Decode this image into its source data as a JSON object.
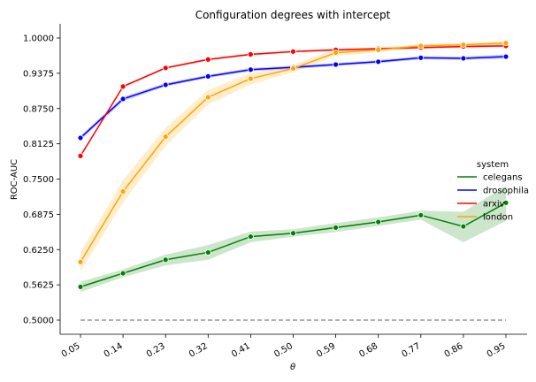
{
  "chart_data": {
    "type": "line",
    "title": "Configuration degrees with intercept",
    "xlabel": "θ",
    "ylabel": "ROC-AUC",
    "categories": [
      "0.05",
      "0.14",
      "0.23",
      "0.32",
      "0.41",
      "0.50",
      "0.59",
      "0.68",
      "0.77",
      "0.86",
      "0.95"
    ],
    "yticks": [
      "0.5000",
      "0.5625",
      "0.6250",
      "0.6875",
      "0.7500",
      "0.8125",
      "0.8750",
      "0.9375",
      "1.0000"
    ],
    "ylim": [
      0.48,
      1.015
    ],
    "legend_title": "system",
    "legend_position": "center-right",
    "grid": false,
    "series": [
      {
        "name": "celegans",
        "color": "#008000",
        "values": [
          0.559,
          0.583,
          0.607,
          0.62,
          0.648,
          0.654,
          0.664,
          0.674,
          0.686,
          0.666,
          0.708
        ],
        "ci_low": [
          0.55,
          0.576,
          0.597,
          0.607,
          0.638,
          0.648,
          0.656,
          0.667,
          0.678,
          0.638,
          0.676
        ],
        "ci_high": [
          0.568,
          0.59,
          0.616,
          0.633,
          0.657,
          0.661,
          0.672,
          0.682,
          0.694,
          0.692,
          0.738
        ]
      },
      {
        "name": "drosophila",
        "color": "#0000ff",
        "values": [
          0.823,
          0.892,
          0.917,
          0.932,
          0.944,
          0.948,
          0.953,
          0.958,
          0.965,
          0.964,
          0.967
        ],
        "ci_low": [
          0.819,
          0.888,
          0.914,
          0.929,
          0.941,
          0.945,
          0.95,
          0.955,
          0.962,
          0.961,
          0.963
        ],
        "ci_high": [
          0.827,
          0.896,
          0.92,
          0.935,
          0.947,
          0.951,
          0.956,
          0.961,
          0.968,
          0.967,
          0.971
        ]
      },
      {
        "name": "arxiv",
        "color": "#ff0000",
        "values": [
          0.791,
          0.914,
          0.947,
          0.962,
          0.971,
          0.976,
          0.979,
          0.981,
          0.983,
          0.985,
          0.986
        ],
        "ci_low": [
          0.789,
          0.912,
          0.945,
          0.96,
          0.969,
          0.974,
          0.977,
          0.979,
          0.981,
          0.983,
          0.984
        ],
        "ci_high": [
          0.793,
          0.916,
          0.949,
          0.964,
          0.973,
          0.978,
          0.981,
          0.983,
          0.985,
          0.987,
          0.988
        ]
      },
      {
        "name": "london",
        "color": "#ffa500",
        "values": [
          0.603,
          0.728,
          0.825,
          0.895,
          0.928,
          0.946,
          0.974,
          0.979,
          0.986,
          0.988,
          0.991
        ],
        "ci_low": [
          0.586,
          0.708,
          0.809,
          0.882,
          0.918,
          0.939,
          0.968,
          0.975,
          0.983,
          0.985,
          0.987
        ],
        "ci_high": [
          0.62,
          0.748,
          0.841,
          0.908,
          0.938,
          0.953,
          0.98,
          0.983,
          0.989,
          0.991,
          0.995
        ]
      }
    ],
    "reference_line": {
      "y": 0.5,
      "color": "#808080",
      "style": "dashed"
    }
  }
}
